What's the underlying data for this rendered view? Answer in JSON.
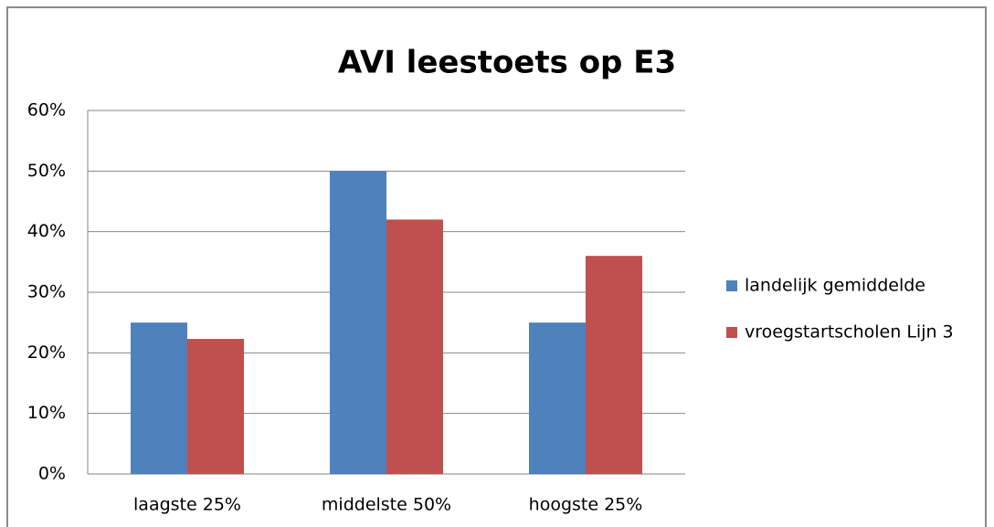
{
  "chart_data": {
    "type": "bar",
    "title": "AVI leestoets op E3",
    "categories": [
      "laagste 25%",
      "middelste 50%",
      "hoogste 25%"
    ],
    "series": [
      {
        "name": "landelijk gemiddelde",
        "color": "#4f81bd",
        "values": [
          25,
          50,
          25
        ]
      },
      {
        "name": "vroegstartscholen Lijn 3",
        "color": "#c0504d",
        "values": [
          22.3,
          42,
          36
        ]
      }
    ],
    "ylim": [
      0,
      60
    ],
    "yticks": [
      {
        "value": 0,
        "label": "0%"
      },
      {
        "value": 10,
        "label": "10%"
      },
      {
        "value": 20,
        "label": "20%"
      },
      {
        "value": 30,
        "label": "30%"
      },
      {
        "value": 40,
        "label": "40%"
      },
      {
        "value": 50,
        "label": "50%"
      },
      {
        "value": 60,
        "label": "60%"
      }
    ],
    "grid": true,
    "legend": "right"
  }
}
